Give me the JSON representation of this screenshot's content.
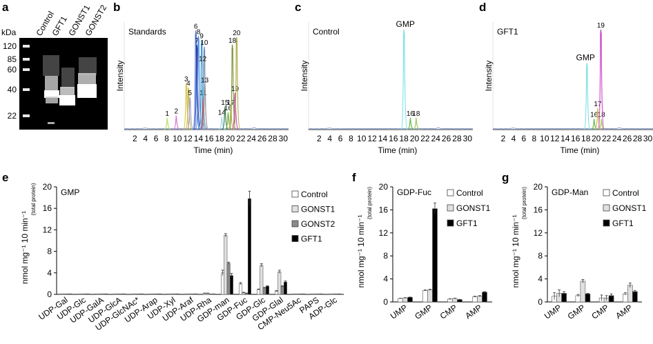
{
  "panel_letters": [
    "a",
    "b",
    "c",
    "d",
    "e",
    "f",
    "g"
  ],
  "gel": {
    "unit": "kDa",
    "markers": [
      "120",
      "85",
      "60",
      "40",
      "22"
    ],
    "marker_kda": [
      120,
      85,
      60,
      40,
      22
    ],
    "lanes": [
      "Control",
      "GFT1",
      "GONST1",
      "GONST2"
    ]
  },
  "chart_data": [
    {
      "type": "line",
      "panel": "b",
      "label": "Standards",
      "xlabel": "Time (min)",
      "ylabel": "Intensity",
      "xlim": [
        0,
        31
      ],
      "xticks": [
        2,
        4,
        6,
        8,
        10,
        12,
        14,
        16,
        18,
        20,
        22,
        24,
        26,
        28,
        30
      ],
      "peaks": [
        {
          "id": "1",
          "x": 8.1,
          "h": 0.11,
          "color": "#b7e36a"
        },
        {
          "id": "2",
          "x": 9.8,
          "h": 0.13,
          "color": "#d77ad1"
        },
        {
          "id": "3",
          "x": 11.7,
          "h": 0.43,
          "color": "#d9c347"
        },
        {
          "id": "4",
          "x": 12.1,
          "h": 0.39,
          "color": "#c8b544"
        },
        {
          "id": "5",
          "x": 12.4,
          "h": 0.3,
          "color": "#9f9fcf"
        },
        {
          "id": "6",
          "x": 13.5,
          "h": 0.92,
          "color": "#4a74d8"
        },
        {
          "id": "7",
          "x": 13.7,
          "h": 0.79,
          "color": "#2233aa"
        },
        {
          "id": "8",
          "x": 14.0,
          "h": 0.87,
          "color": "#4f8ad8"
        },
        {
          "id": "9",
          "x": 14.6,
          "h": 0.83,
          "color": "#3a9ad8"
        },
        {
          "id": "10",
          "x": 15.1,
          "h": 0.77,
          "color": "#7a8ab0"
        },
        {
          "id": "11",
          "x": 14.9,
          "h": 0.3,
          "color": "#cc3344"
        },
        {
          "id": "12",
          "x": 14.8,
          "h": 0.62,
          "color": "#80c0e0"
        },
        {
          "id": "13",
          "x": 15.2,
          "h": 0.42,
          "color": "#9a9a9a"
        },
        {
          "id": "14",
          "x": 18.4,
          "h": 0.12,
          "color": "#a7d6f0"
        },
        {
          "id": "15",
          "x": 19.0,
          "h": 0.21,
          "color": "#3c7a4c"
        },
        {
          "id": "16",
          "x": 19.6,
          "h": 0.16,
          "color": "#6ab34a"
        },
        {
          "id": "17",
          "x": 20.1,
          "h": 0.21,
          "color": "#d0c050"
        },
        {
          "id": "18",
          "x": 20.4,
          "h": 0.79,
          "color": "#7a9a3a"
        },
        {
          "id": "19",
          "x": 20.9,
          "h": 0.34,
          "color": "#c93cc2"
        },
        {
          "id": "20",
          "x": 21.2,
          "h": 0.86,
          "color": "#b3a94a"
        }
      ]
    },
    {
      "type": "line",
      "panel": "c",
      "label": "Control",
      "annotation": "GMP",
      "xlabel": "Time (min)",
      "ylabel": "Intensity",
      "xlim": [
        0,
        31
      ],
      "xticks": [
        2,
        4,
        6,
        8,
        10,
        12,
        14,
        16,
        18,
        20,
        22,
        24,
        26,
        28,
        30
      ],
      "peaks": [
        {
          "id": "GMP",
          "x": 18.0,
          "h": 0.93,
          "color": "#7fe0e6"
        },
        {
          "id": "16",
          "x": 19.2,
          "h": 0.11,
          "color": "#66bb44"
        },
        {
          "id": "18",
          "x": 20.3,
          "h": 0.11,
          "color": "#99cc66"
        }
      ]
    },
    {
      "type": "line",
      "panel": "d",
      "label": "GFT1",
      "annotation": "GMP",
      "xlabel": "Time (min)",
      "ylabel": "Intensity",
      "xlim": [
        0,
        31
      ],
      "xticks": [
        2,
        4,
        6,
        8,
        10,
        12,
        14,
        16,
        18,
        20,
        22,
        24,
        26,
        28,
        30
      ],
      "peaks": [
        {
          "id": "GMP",
          "x": 18.2,
          "h": 0.62,
          "color": "#7fe0e6"
        },
        {
          "id": "16",
          "x": 19.6,
          "h": 0.1,
          "color": "#66bb44"
        },
        {
          "id": "17",
          "x": 20.3,
          "h": 0.2,
          "color": "#c8c050"
        },
        {
          "id": "18",
          "x": 21.0,
          "h": 0.1,
          "color": "#aacc55"
        },
        {
          "id": "19",
          "x": 20.9,
          "h": 0.93,
          "color": "#cc44cc"
        }
      ]
    },
    {
      "type": "bar",
      "panel": "e",
      "label": "GMP",
      "ylabel": "nmol mg⁻¹ 10 min⁻¹",
      "ylabel_sub": "(total protein)",
      "ylim": [
        0,
        20
      ],
      "yticks": [
        0,
        4,
        8,
        12,
        16,
        20
      ],
      "categories": [
        "UDP-Gal",
        "UDP-Glc",
        "UDP-GalA",
        "UDP-GlcA",
        "UDP-GlcNAc*",
        "UDP-Arap",
        "UDP-Xyl",
        "UDP-Araf",
        "UDP-Rha",
        "GDP-man",
        "GDP-Fuc",
        "GDP-Glc",
        "GDP-Glal",
        "CMP-Neu5Ac",
        "PAPS",
        "ADP-Glc"
      ],
      "series": [
        {
          "name": "Control",
          "color": "#ffffff",
          "values": [
            0.1,
            0.1,
            0.1,
            0.1,
            0.1,
            0.1,
            0.1,
            0.1,
            0.2,
            4.0,
            2.0,
            0.9,
            0.6,
            0.1,
            0.1,
            0.1
          ],
          "errors": [
            0,
            0,
            0,
            0,
            0,
            0,
            0,
            0,
            0.05,
            0.5,
            0.2,
            0.1,
            0.1,
            0,
            0,
            0
          ]
        },
        {
          "name": "GONST1",
          "color": "#e0e0e0",
          "values": [
            0.1,
            0.1,
            0.1,
            0.1,
            0.1,
            0.1,
            0.1,
            0.1,
            0.2,
            11.0,
            0.3,
            5.4,
            4.2,
            0.1,
            0.1,
            0.1
          ],
          "errors": [
            0,
            0,
            0,
            0,
            0,
            0,
            0,
            0,
            0.05,
            0.3,
            0.1,
            0.3,
            0.3,
            0,
            0,
            0
          ]
        },
        {
          "name": "GONST2",
          "color": "#8a8a8a",
          "values": [
            0.1,
            0.1,
            0.1,
            0.1,
            0.1,
            0.1,
            0.1,
            0.1,
            0.1,
            5.8,
            0.2,
            1.2,
            1.5,
            0.1,
            0.1,
            0.1
          ],
          "errors": [
            0,
            0,
            0,
            0,
            0,
            0,
            0,
            0,
            0,
            0.2,
            0.05,
            0.1,
            0.1,
            0,
            0,
            0
          ]
        },
        {
          "name": "GFT1",
          "color": "#000000",
          "values": [
            0.1,
            0.1,
            0.1,
            0.1,
            0.1,
            0.1,
            0.1,
            0.1,
            0.1,
            3.5,
            17.8,
            1.5,
            2.3,
            0.1,
            0.1,
            0.1
          ],
          "errors": [
            0,
            0,
            0,
            0,
            0,
            0,
            0,
            0,
            0,
            0.4,
            1.4,
            0.1,
            0.2,
            0,
            0,
            0
          ]
        }
      ]
    },
    {
      "type": "bar",
      "panel": "f",
      "label": "GDP-Fuc",
      "ylabel": "nmol mg⁻¹ 10 min⁻¹",
      "ylabel_sub": "(total protein)",
      "ylim": [
        0,
        20
      ],
      "yticks": [
        0,
        4,
        8,
        12,
        16,
        20
      ],
      "categories": [
        "UMP",
        "GMP",
        "CMP",
        "AMP"
      ],
      "series": [
        {
          "name": "Control",
          "color": "#ffffff",
          "values": [
            0.6,
            2.0,
            0.5,
            0.9
          ],
          "errors": [
            0.05,
            0.1,
            0.05,
            0.1
          ]
        },
        {
          "name": "GONST1",
          "color": "#e0e0e0",
          "values": [
            0.7,
            2.1,
            0.6,
            1.0
          ],
          "errors": [
            0.05,
            0.1,
            0.05,
            0.1
          ]
        },
        {
          "name": "GFT1",
          "color": "#000000",
          "values": [
            0.8,
            16.2,
            0.4,
            1.7
          ],
          "errors": [
            0.05,
            1.0,
            0.05,
            0.1
          ]
        }
      ]
    },
    {
      "type": "bar",
      "panel": "g",
      "label": "GDP-Man",
      "ylabel": "nmol mg⁻¹ 10 min⁻¹",
      "ylabel_sub": "(total protein)",
      "ylim": [
        0,
        20
      ],
      "yticks": [
        0,
        4,
        8,
        12,
        16,
        20
      ],
      "categories": [
        "UMP",
        "GMP",
        "CMP",
        "AMP"
      ],
      "series": [
        {
          "name": "Control",
          "color": "#ffffff",
          "values": [
            1.0,
            1.1,
            0.7,
            1.4
          ],
          "errors": [
            0.6,
            0.2,
            0.5,
            0.2
          ]
        },
        {
          "name": "GONST1",
          "color": "#e0e0e0",
          "values": [
            1.5,
            3.6,
            0.7,
            2.9
          ],
          "errors": [
            0.6,
            0.3,
            0.4,
            0.4
          ]
        },
        {
          "name": "GFT1",
          "color": "#000000",
          "values": [
            1.5,
            1.4,
            1.1,
            1.8
          ],
          "errors": [
            0.3,
            0.1,
            0.3,
            0.2
          ]
        }
      ]
    }
  ]
}
